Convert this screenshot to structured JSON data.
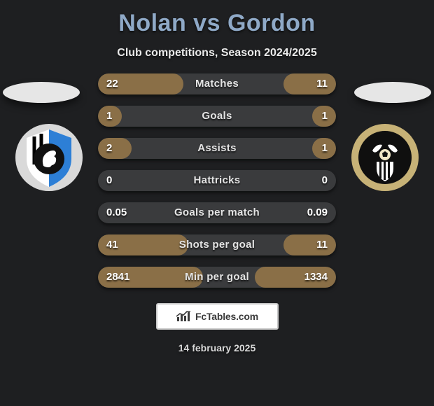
{
  "title": "Nolan vs Gordon",
  "subtitle": "Club competitions, Season 2024/2025",
  "date": "14 february 2025",
  "footer_brand": "FcTables.com",
  "bar_track_color": "#3a3b3d",
  "left_fill_color": "#8a6f47",
  "right_fill_color": "#8a6f47",
  "title_color": "#8fa9c7",
  "badge_left": {
    "ring_color": "#d9d9d9",
    "stripe_bg": "#ffffff",
    "stripe_blue": "#2d7fd6",
    "inner_black": "#111111",
    "text_color": "#a7c4e8"
  },
  "badge_right": {
    "outer": "#c7b277",
    "inner": "#0f0f0f",
    "stripe": "#ffffff",
    "ball": "#f0e6c6"
  },
  "rows": [
    {
      "label": "Matches",
      "l": "22",
      "r": "11",
      "lw": 36,
      "rw": 22,
      "lfill": "#8a6f47",
      "rfill": "#8a6f47"
    },
    {
      "label": "Goals",
      "l": "1",
      "r": "1",
      "lw": 10,
      "rw": 10,
      "lfill": "#8a6f47",
      "rfill": "#8a6f47"
    },
    {
      "label": "Assists",
      "l": "2",
      "r": "1",
      "lw": 14,
      "rw": 10,
      "lfill": "#8a6f47",
      "rfill": "#8a6f47"
    },
    {
      "label": "Hattricks",
      "l": "0",
      "r": "0",
      "lw": 0,
      "rw": 0,
      "lfill": "#8a6f47",
      "rfill": "#8a6f47"
    },
    {
      "label": "Goals per match",
      "l": "0.05",
      "r": "0.09",
      "lw": 0,
      "rw": 0,
      "lfill": "#8a6f47",
      "rfill": "#8a6f47"
    },
    {
      "label": "Shots per goal",
      "l": "41",
      "r": "11",
      "lw": 38,
      "rw": 22,
      "lfill": "#8a6f47",
      "rfill": "#8a6f47"
    },
    {
      "label": "Min per goal",
      "l": "2841",
      "r": "1334",
      "lw": 44,
      "rw": 34,
      "lfill": "#8a6f47",
      "rfill": "#8a6f47"
    }
  ]
}
